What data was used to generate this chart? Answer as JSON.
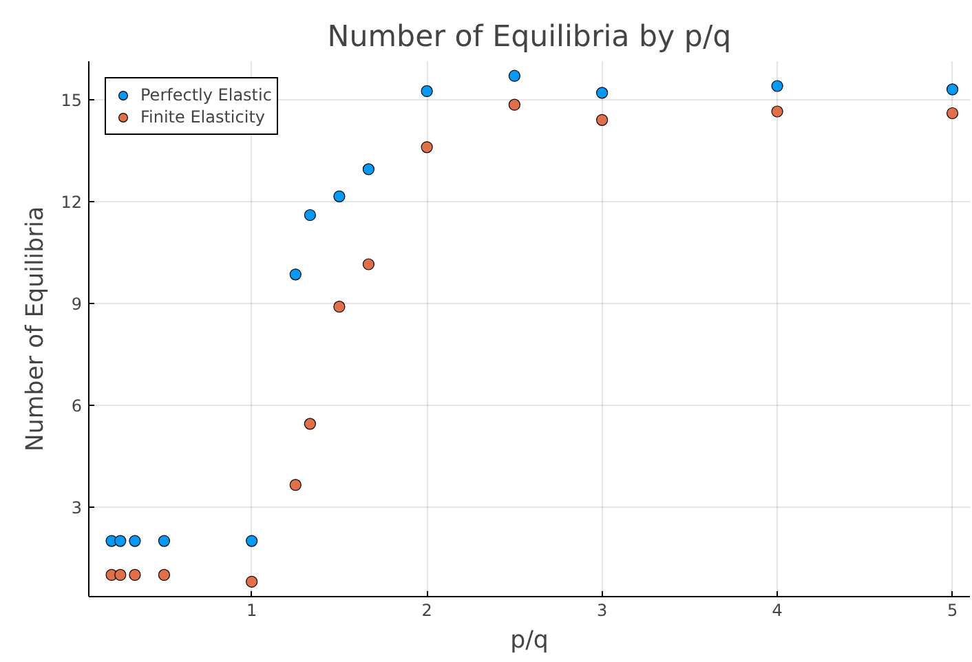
{
  "chart_data": {
    "type": "scatter",
    "title": "Number of Equilibria by p/q",
    "xlabel": "p/q",
    "ylabel": "Number of Equilibria",
    "xlim": [
      0.07,
      5.1
    ],
    "ylim": [
      0.36,
      16.13
    ],
    "xticks": [
      1,
      2,
      3,
      4,
      5
    ],
    "yticks": [
      3,
      6,
      9,
      12,
      15
    ],
    "grid": true,
    "legend": "top left",
    "marker": "circle",
    "x": [
      0.2,
      0.25,
      0.333,
      0.5,
      1,
      1.25,
      1.333,
      1.5,
      1.667,
      2,
      2.5,
      3,
      4,
      5
    ],
    "series": [
      {
        "name": "Perfectly Elastic",
        "color": "#009af9",
        "values": [
          2,
          2,
          2,
          2,
          2,
          9.85,
          11.6,
          12.15,
          12.95,
          15.25,
          15.7,
          15.2,
          15.4,
          15.3
        ]
      },
      {
        "name": "Finite Elasticity",
        "color": "#e26f46",
        "values": [
          1,
          1,
          1,
          1,
          0.8,
          3.65,
          5.45,
          8.9,
          10.15,
          13.6,
          14.85,
          14.4,
          14.65,
          14.6
        ]
      }
    ]
  }
}
